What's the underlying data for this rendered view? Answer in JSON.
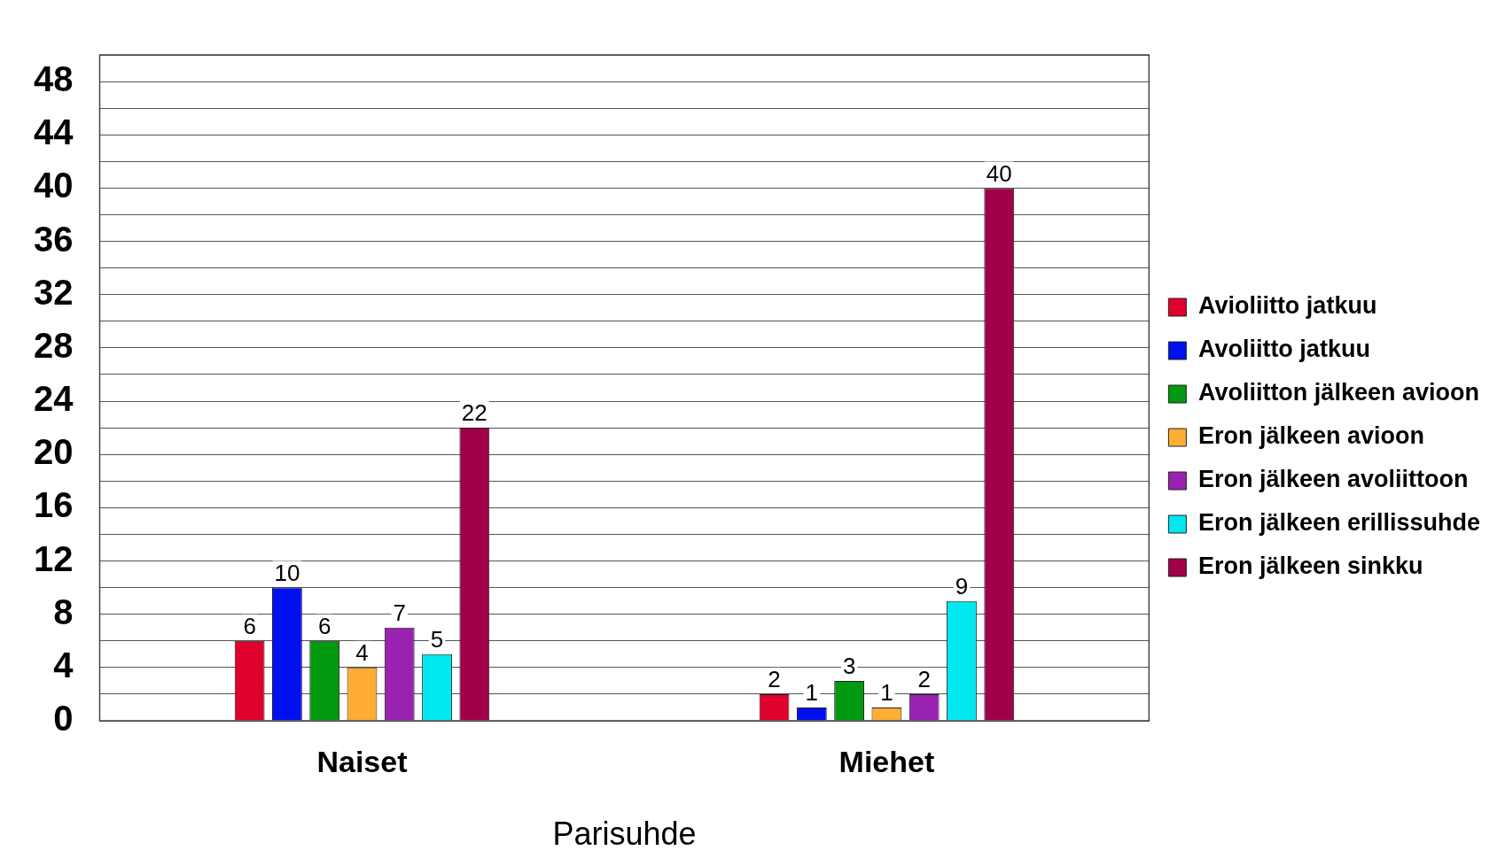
{
  "chart_data": {
    "type": "bar",
    "xlabel": "Parisuhde",
    "categories": [
      "Naiset",
      "Miehet"
    ],
    "series": [
      {
        "name": "Avioliitto jatkuu",
        "color": "#e0002c",
        "values": [
          6,
          2
        ]
      },
      {
        "name": "Avoliitto jatkuu",
        "color": "#0010f0",
        "values": [
          10,
          1
        ]
      },
      {
        "name": "Avoliitton jälkeen avioon",
        "color": "#00990f",
        "values": [
          6,
          3
        ]
      },
      {
        "name": "Eron jälkeen avioon",
        "color": "#ffad33",
        "values": [
          4,
          1
        ]
      },
      {
        "name": "Eron jälkeen avoliittoon",
        "color": "#9a22b0",
        "values": [
          7,
          2
        ]
      },
      {
        "name": "Eron jälkeen erillissuhde",
        "color": "#00e8f0",
        "values": [
          5,
          9
        ]
      },
      {
        "name": "Eron jälkeen sinkku",
        "color": "#a0004a",
        "values": [
          22,
          40
        ]
      }
    ],
    "ylim": [
      0,
      50
    ],
    "yticks": [
      0,
      {
        "value": 2,
        "label": null
      },
      4,
      {
        "value": 6,
        "label": null
      },
      8,
      {
        "value": 10,
        "label": null
      },
      12,
      {
        "value": 14,
        "label": null
      },
      16,
      {
        "value": 18,
        "label": null
      },
      20,
      {
        "value": 22,
        "label": null
      },
      24,
      {
        "value": 26,
        "label": null
      },
      28,
      {
        "value": 30,
        "label": null
      },
      32,
      {
        "value": 34,
        "label": null
      },
      36,
      {
        "value": 38,
        "label": null
      },
      40,
      {
        "value": 42,
        "label": null
      },
      44,
      {
        "value": 46,
        "label": null
      },
      48,
      {
        "value": 50,
        "label": null
      }
    ],
    "grid": "y",
    "legend": "right",
    "data_labels": true
  }
}
